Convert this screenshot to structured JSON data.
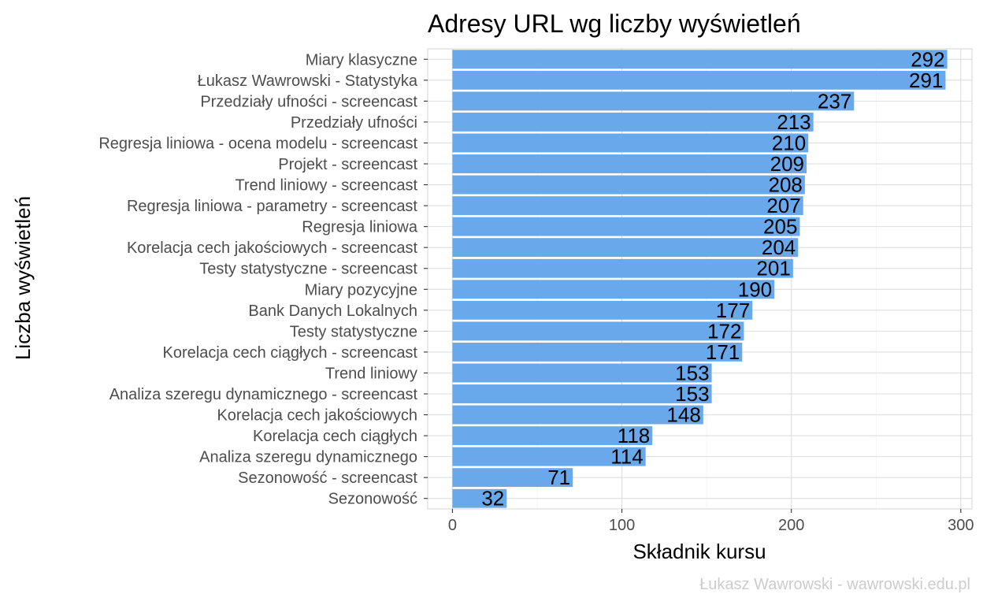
{
  "chart_data": {
    "type": "bar",
    "orientation": "horizontal",
    "title": "Adresy URL wg liczby wyświetleń",
    "xlabel": "Składnik kursu",
    "ylabel": "Liczba wyświetleń",
    "caption": "Łukasz Wawrowski - wawrowski.edu.pl",
    "bar_color": "#6aa8ec",
    "xlim": [
      -14.6,
      306.6
    ],
    "x_ticks": [
      0,
      100,
      200,
      300
    ],
    "grid": true,
    "categories": [
      "Miary klasyczne",
      "Łukasz Wawrowski - Statystyka",
      "Przedziały ufności - screencast",
      "Przedziały ufności",
      "Regresja liniowa - ocena modelu - screencast",
      "Projekt - screencast",
      "Trend liniowy - screencast",
      "Regresja liniowa - parametry - screencast",
      "Regresja liniowa",
      "Korelacja cech jakościowych - screencast",
      "Testy statystyczne - screencast",
      "Miary pozycyjne",
      "Bank Danych Lokalnych",
      "Testy statystyczne",
      "Korelacja cech ciągłych - screencast",
      "Trend liniowy",
      "Analiza szeregu dynamicznego - screencast",
      "Korelacja cech jakościowych",
      "Korelacja cech ciągłych",
      "Analiza szeregu dynamicznego",
      "Sezonowość - screencast",
      "Sezonowość"
    ],
    "values": [
      292,
      291,
      237,
      213,
      210,
      209,
      208,
      207,
      205,
      204,
      201,
      190,
      177,
      172,
      171,
      153,
      153,
      148,
      118,
      114,
      71,
      32
    ]
  }
}
